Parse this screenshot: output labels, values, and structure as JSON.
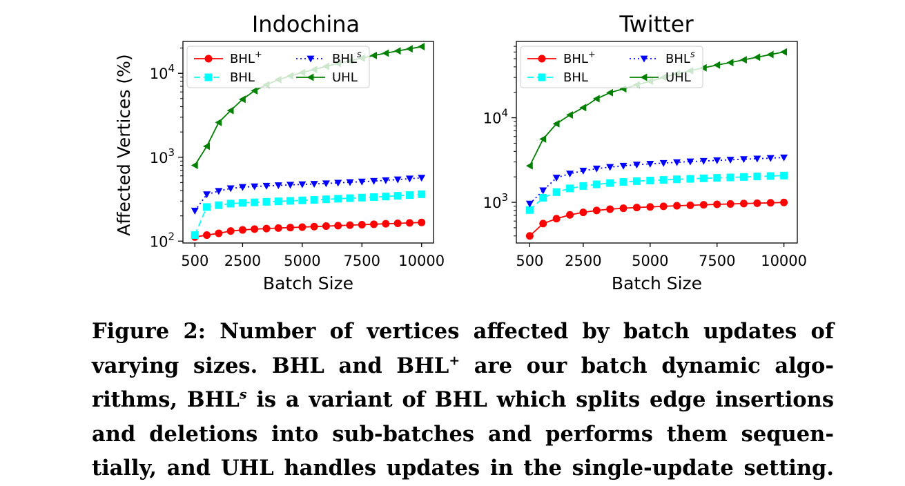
{
  "chart_data": [
    {
      "type": "line",
      "title": "Indochina",
      "xlabel": "Batch Size",
      "ylabel": "Affected Vertices (%)",
      "yscale": "log",
      "xlim": [
        0,
        10500
      ],
      "ylim": [
        95,
        24000
      ],
      "xticks": [
        "500",
        "2500",
        "5000",
        "7500",
        "10000"
      ],
      "xtick_values": [
        500,
        2500,
        5000,
        7500,
        10000
      ],
      "yticks": [
        {
          "value": 100,
          "base": "10",
          "exp": "2"
        },
        {
          "value": 1000,
          "base": "10",
          "exp": "3"
        },
        {
          "value": 10000,
          "base": "10",
          "exp": "4"
        }
      ],
      "legend_position": "upper-left",
      "x": [
        500,
        1000,
        1500,
        2000,
        2500,
        3000,
        3500,
        4000,
        4500,
        5000,
        5500,
        6000,
        6500,
        7000,
        7500,
        8000,
        8500,
        9000,
        9500,
        10000
      ],
      "series": [
        {
          "name": "BHL",
          "sup": "+",
          "color": "#ff0000",
          "marker": "circle",
          "dash": "solid",
          "values": [
            112,
            118,
            124,
            132,
            136,
            139,
            141,
            143,
            145,
            147,
            149,
            151,
            153,
            155,
            157,
            159,
            161,
            163,
            165,
            167
          ]
        },
        {
          "name": "BHL",
          "sup": "",
          "color": "#00ffff",
          "marker": "square",
          "dash": "dashed",
          "values": [
            118,
            255,
            268,
            280,
            286,
            290,
            294,
            298,
            302,
            306,
            310,
            315,
            320,
            325,
            330,
            335,
            340,
            347,
            354,
            362
          ]
        },
        {
          "name": "BHL",
          "sup": "s",
          "color": "#0000ff",
          "marker": "triangle-down",
          "dash": "dotted",
          "values": [
            230,
            360,
            395,
            425,
            440,
            448,
            455,
            462,
            468,
            474,
            480,
            487,
            495,
            503,
            511,
            520,
            530,
            542,
            555,
            568
          ]
        },
        {
          "name": "UHL",
          "sup": "",
          "color": "#008000",
          "marker": "triangle-left",
          "dash": "solid",
          "values": [
            800,
            1350,
            2600,
            3600,
            4900,
            6200,
            7300,
            8400,
            9300,
            10200,
            11100,
            12100,
            13100,
            14100,
            15200,
            16300,
            17400,
            18500,
            19600,
            20800
          ]
        }
      ]
    },
    {
      "type": "line",
      "title": "Twitter",
      "xlabel": "Batch Size",
      "ylabel": "",
      "yscale": "log",
      "xlim": [
        0,
        10500
      ],
      "ylim": [
        330,
        80000
      ],
      "xticks": [
        "500",
        "2500",
        "5000",
        "7500",
        "10000"
      ],
      "xtick_values": [
        500,
        2500,
        5000,
        7500,
        10000
      ],
      "yticks": [
        {
          "value": 1000,
          "base": "10",
          "exp": "3"
        },
        {
          "value": 10000,
          "base": "10",
          "exp": "4"
        }
      ],
      "legend_position": "upper-left",
      "x": [
        500,
        1000,
        1500,
        2000,
        2500,
        3000,
        3500,
        4000,
        4500,
        5000,
        5500,
        6000,
        6500,
        7000,
        7500,
        8000,
        8500,
        9000,
        9500,
        10000
      ],
      "series": [
        {
          "name": "BHL",
          "sup": "+",
          "color": "#ff0000",
          "marker": "circle",
          "dash": "solid",
          "values": [
            400,
            560,
            640,
            710,
            760,
            800,
            830,
            850,
            868,
            882,
            896,
            910,
            922,
            934,
            946,
            956,
            966,
            976,
            986,
            996
          ]
        },
        {
          "name": "BHL",
          "sup": "",
          "color": "#00ffff",
          "marker": "square",
          "dash": "dashed",
          "values": [
            810,
            1130,
            1320,
            1460,
            1560,
            1630,
            1690,
            1740,
            1780,
            1810,
            1840,
            1870,
            1895,
            1920,
            1945,
            1970,
            1995,
            2020,
            2045,
            2070
          ]
        },
        {
          "name": "BHL",
          "sup": "s",
          "color": "#0000ff",
          "marker": "triangle-down",
          "dash": "dotted",
          "values": [
            960,
            1380,
            1950,
            2180,
            2360,
            2500,
            2610,
            2700,
            2780,
            2850,
            2910,
            2970,
            3030,
            3080,
            3130,
            3180,
            3230,
            3280,
            3330,
            3380
          ]
        },
        {
          "name": "UHL",
          "sup": "",
          "color": "#008000",
          "marker": "triangle-left",
          "dash": "solid",
          "values": [
            2700,
            5600,
            8500,
            10800,
            13200,
            16800,
            19800,
            22000,
            24500,
            27000,
            30000,
            33000,
            36000,
            39000,
            42000,
            45000,
            48500,
            52000,
            56000,
            60000
          ]
        }
      ]
    }
  ],
  "caption": {
    "l1": "Figure 2: Number of vertices affected by batch updates of",
    "l2a": "varying sizes. BHL and BHL",
    "l2sup": "+",
    "l2b": " are our batch dynamic algo-",
    "l3a": "rithms, BHL",
    "l3sup": "s",
    "l3b": " is a variant of BHL which splits edge insertions",
    "l4": "and deletions into sub-batches and performs them sequen-",
    "l5": "tially, and UHL handles updates in the single-update setting."
  }
}
